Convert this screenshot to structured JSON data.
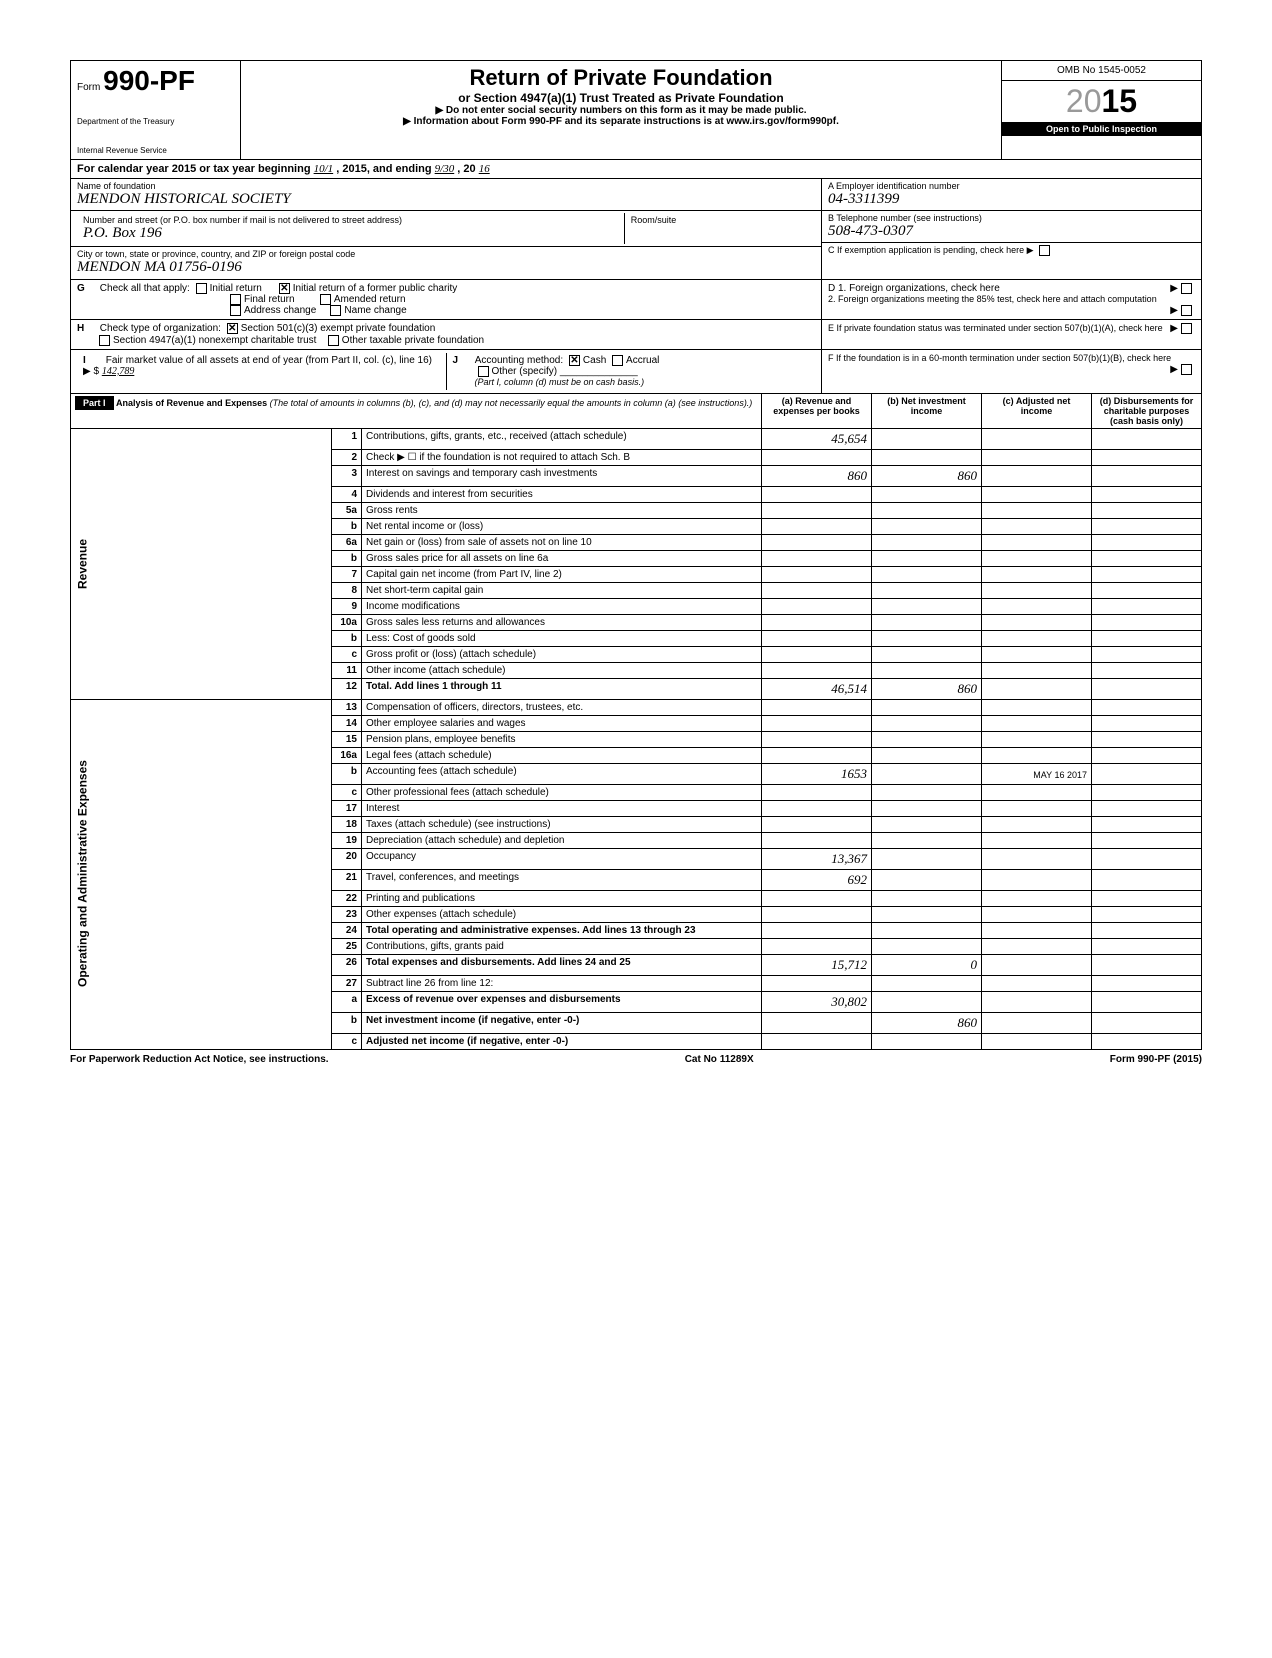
{
  "form": {
    "number_prefix": "Form",
    "number": "990-PF",
    "dept1": "Department of the Treasury",
    "dept2": "Internal Revenue Service",
    "title": "Return of Private Foundation",
    "subtitle": "or Section 4947(a)(1) Trust Treated as Private Foundation",
    "warning": "▶ Do not enter social security numbers on this form as it may be made public.",
    "info": "▶ Information about Form 990-PF and its separate instructions is at www.irs.gov/form990pf.",
    "omb": "OMB No 1545-0052",
    "year_light": "20",
    "year_bold": "15",
    "inspection": "Open to Public Inspection"
  },
  "calyear": {
    "prefix": "For calendar year 2015 or tax year beginning",
    "begin": "10/1",
    "mid": ", 2015, and ending",
    "end": "9/30",
    "suffix": ", 20",
    "endyear": "16"
  },
  "identity": {
    "name_label": "Name of foundation",
    "name": "MENDON HISTORICAL SOCIETY",
    "addr_label": "Number and street (or P.O. box number if mail is not delivered to street address)",
    "room_label": "Room/suite",
    "addr": "P.O. Box 196",
    "city_label": "City or town, state or province, country, and ZIP or foreign postal code",
    "city": "MENDON    MA    01756-0196",
    "ein_label": "A  Employer identification number",
    "ein": "04-3311399",
    "phone_label": "B  Telephone number (see instructions)",
    "phone": "508-473-0307",
    "c_label": "C  If exemption application is pending, check here ▶",
    "d1": "D  1. Foreign organizations, check here",
    "d2": "2. Foreign organizations meeting the 85% test, check here and attach computation",
    "e_label": "E  If private foundation status was terminated under section 507(b)(1)(A), check here",
    "f_label": "F  If the foundation is in a 60-month termination under section 507(b)(1)(B), check here"
  },
  "g": {
    "label": "G",
    "text": "Check all that apply:",
    "opt1": "Initial return",
    "opt2": "Initial return of a former public charity",
    "opt3": "Final return",
    "opt4": "Amended return",
    "opt5": "Address change",
    "opt6": "Name change"
  },
  "h": {
    "label": "H",
    "text": "Check type of organization:",
    "opt1": "Section 501(c)(3) exempt private foundation",
    "opt2": "Section 4947(a)(1) nonexempt charitable trust",
    "opt3": "Other taxable private foundation"
  },
  "i": {
    "label": "I",
    "text": "Fair market value of all assets at end of year (from Part II, col. (c), line 16) ▶ $",
    "value": "142,789"
  },
  "j": {
    "label": "J",
    "text": "Accounting method:",
    "opt1": "Cash",
    "opt2": "Accrual",
    "opt3": "Other (specify)",
    "note": "(Part I, column (d) must be on cash basis.)"
  },
  "part1": {
    "label": "Part I",
    "title": "Analysis of Revenue and Expenses",
    "desc": "(The total of amounts in columns (b), (c), and (d) may not necessarily equal the amounts in column (a) (see instructions).)",
    "col_a": "(a) Revenue and expenses per books",
    "col_b": "(b) Net investment income",
    "col_c": "(c) Adjusted net income",
    "col_d": "(d) Disbursements for charitable purposes (cash basis only)"
  },
  "revenue_label": "Revenue",
  "expense_label": "Operating and Administrative Expenses",
  "rows": [
    {
      "num": "1",
      "desc": "Contributions, gifts, grants, etc., received (attach schedule)",
      "a": "45,654",
      "b": "",
      "shaded_c": false,
      "shaded_d": false
    },
    {
      "num": "2",
      "desc": "Check ▶ ☐ if the foundation is not required to attach Sch. B",
      "a": "",
      "b": "",
      "shaded_a": true
    },
    {
      "num": "3",
      "desc": "Interest on savings and temporary cash investments",
      "a": "860",
      "b": "860"
    },
    {
      "num": "4",
      "desc": "Dividends and interest from securities",
      "a": "",
      "b": ""
    },
    {
      "num": "5a",
      "desc": "Gross rents",
      "a": "",
      "b": ""
    },
    {
      "num": "b",
      "desc": "Net rental income or (loss)",
      "a": "",
      "b": ""
    },
    {
      "num": "6a",
      "desc": "Net gain or (loss) from sale of assets not on line 10",
      "a": "",
      "b": ""
    },
    {
      "num": "b",
      "desc": "Gross sales price for all assets on line 6a",
      "a": "",
      "b": ""
    },
    {
      "num": "7",
      "desc": "Capital gain net income (from Part IV, line 2)",
      "a": "",
      "b": ""
    },
    {
      "num": "8",
      "desc": "Net short-term capital gain",
      "a": "",
      "b": ""
    },
    {
      "num": "9",
      "desc": "Income modifications",
      "a": "",
      "b": ""
    },
    {
      "num": "10a",
      "desc": "Gross sales less returns and allowances",
      "a": "",
      "b": ""
    },
    {
      "num": "b",
      "desc": "Less: Cost of goods sold",
      "a": "",
      "b": ""
    },
    {
      "num": "c",
      "desc": "Gross profit or (loss) (attach schedule)",
      "a": "",
      "b": ""
    },
    {
      "num": "11",
      "desc": "Other income (attach schedule)",
      "a": "",
      "b": ""
    },
    {
      "num": "12",
      "desc": "Total. Add lines 1 through 11",
      "a": "46,514",
      "b": "860",
      "bold": true
    }
  ],
  "exp_rows": [
    {
      "num": "13",
      "desc": "Compensation of officers, directors, trustees, etc.",
      "a": ""
    },
    {
      "num": "14",
      "desc": "Other employee salaries and wages",
      "a": ""
    },
    {
      "num": "15",
      "desc": "Pension plans, employee benefits",
      "a": ""
    },
    {
      "num": "16a",
      "desc": "Legal fees (attach schedule)",
      "a": ""
    },
    {
      "num": "b",
      "desc": "Accounting fees (attach schedule)",
      "a": "1653",
      "c_stamp": "MAY 16 2017"
    },
    {
      "num": "c",
      "desc": "Other professional fees (attach schedule)",
      "a": ""
    },
    {
      "num": "17",
      "desc": "Interest",
      "a": ""
    },
    {
      "num": "18",
      "desc": "Taxes (attach schedule) (see instructions)",
      "a": ""
    },
    {
      "num": "19",
      "desc": "Depreciation (attach schedule) and depletion",
      "a": ""
    },
    {
      "num": "20",
      "desc": "Occupancy",
      "a": "13,367"
    },
    {
      "num": "21",
      "desc": "Travel, conferences, and meetings",
      "a": "692"
    },
    {
      "num": "22",
      "desc": "Printing and publications",
      "a": ""
    },
    {
      "num": "23",
      "desc": "Other expenses (attach schedule)",
      "a": ""
    },
    {
      "num": "24",
      "desc": "Total operating and administrative expenses. Add lines 13 through 23",
      "a": "",
      "bold": true
    },
    {
      "num": "25",
      "desc": "Contributions, gifts, grants paid",
      "a": ""
    },
    {
      "num": "26",
      "desc": "Total expenses and disbursements. Add lines 24 and 25",
      "a": "15,712",
      "b": "0",
      "bold": true
    },
    {
      "num": "27",
      "desc": "Subtract line 26 from line 12:",
      "a": ""
    },
    {
      "num": "a",
      "desc": "Excess of revenue over expenses and disbursements",
      "a": "30,802",
      "bold": true
    },
    {
      "num": "b",
      "desc": "Net investment income (if negative, enter -0-)",
      "a": "",
      "b": "860",
      "bold": true
    },
    {
      "num": "c",
      "desc": "Adjusted net income (if negative, enter -0-)",
      "a": "",
      "bold": true
    }
  ],
  "footer": {
    "left": "For Paperwork Reduction Act Notice, see instructions.",
    "center": "Cat No  11289X",
    "right": "Form 990-PF (2015)"
  }
}
